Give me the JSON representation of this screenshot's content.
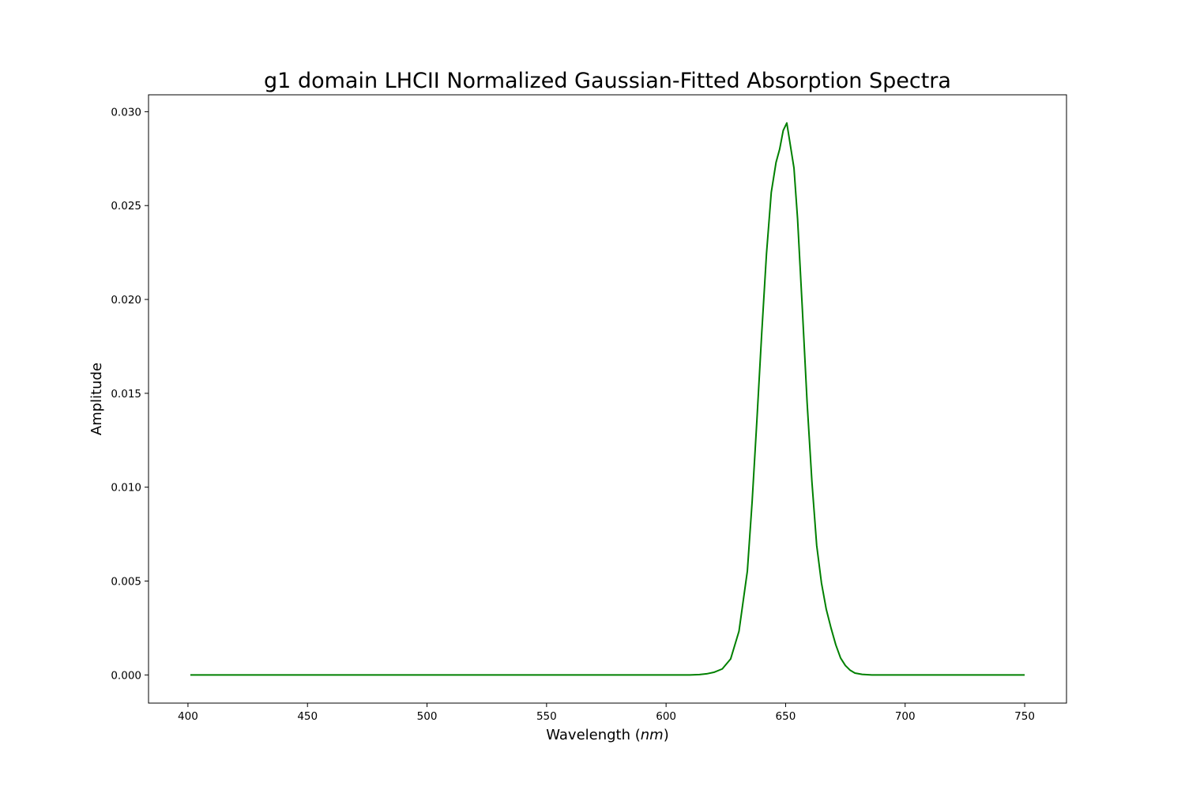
{
  "chart_data": {
    "type": "line",
    "title": "g1 domain LHCII Normalized Gaussian-Fitted Absorption Spectra",
    "xlabel": "Wavelength (nm)",
    "xlabel_parts": {
      "prefix": "Wavelength (",
      "italic": "nm",
      "suffix": ")"
    },
    "ylabel": "Amplitude",
    "xlim": [
      383.5,
      767.5
    ],
    "ylim": [
      -0.0015,
      0.0309
    ],
    "xticks": [
      400,
      450,
      500,
      550,
      600,
      650,
      700,
      750
    ],
    "xtick_labels": [
      "400",
      "450",
      "500",
      "550",
      "600",
      "650",
      "700",
      "750"
    ],
    "yticks": [
      0.0,
      0.005,
      0.01,
      0.015,
      0.02,
      0.025,
      0.03
    ],
    "ytick_labels": [
      "0.000",
      "0.005",
      "0.010",
      "0.015",
      "0.020",
      "0.025",
      "0.030"
    ],
    "grid": false,
    "legend": "none",
    "series": [
      {
        "color": "#008000",
        "x": [
          401,
          500,
          600,
          610,
          614,
          617,
          620,
          623.5,
          627,
          630.5,
          634,
          636,
          638,
          640,
          642,
          644,
          646,
          647.5,
          649,
          650.5,
          653.5,
          655,
          657,
          659,
          661,
          663,
          665,
          667,
          669,
          671,
          673,
          675,
          677,
          679,
          682,
          686,
          690,
          700,
          750
        ],
        "y": [
          0.0,
          0.0,
          0.0,
          0.0,
          2e-05,
          6e-05,
          0.00014,
          0.00032,
          0.00085,
          0.00233,
          0.00553,
          0.00924,
          0.01359,
          0.01818,
          0.02243,
          0.0257,
          0.0273,
          0.028,
          0.029,
          0.0294,
          0.027,
          0.0243,
          0.0195,
          0.0145,
          0.0103,
          0.0069,
          0.0049,
          0.0035,
          0.0025,
          0.0016,
          0.0009,
          0.0005,
          0.00025,
          0.0001,
          3e-05,
          0.0,
          0.0,
          0.0,
          0.0
        ]
      }
    ]
  }
}
